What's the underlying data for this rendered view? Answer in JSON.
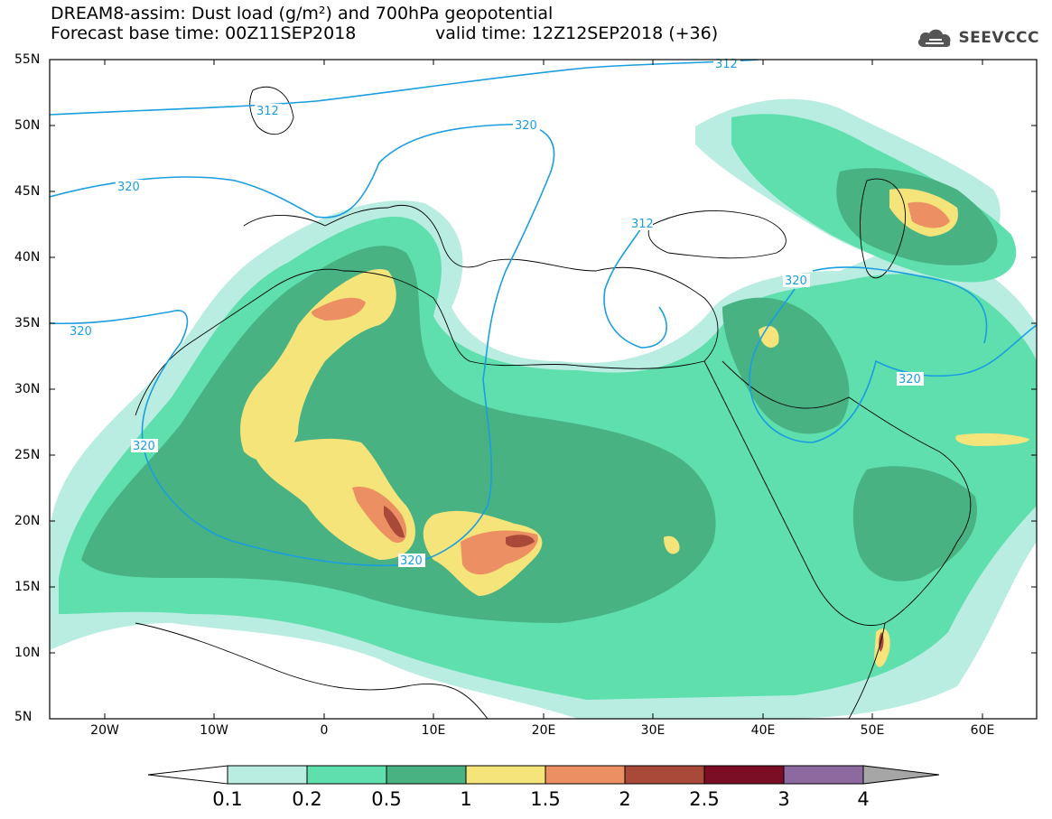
{
  "header": {
    "title_line1": "DREAM8-assim: Dust load (g/m²) and 700hPa geopotential",
    "title_line2_left": "Forecast base time: 00Z11SEP2018",
    "title_line2_right": "valid time: 12Z12SEP2018 (+36)"
  },
  "logo": {
    "text": "SEEVCCC",
    "icon": "cloud-icon"
  },
  "map": {
    "projection": "latitude-longitude",
    "lon_range": [
      "25W",
      "65E"
    ],
    "lat_range": [
      "5N",
      "55N"
    ],
    "lat_labels": [
      "55N",
      "50N",
      "45N",
      "40N",
      "35N",
      "30N",
      "25N",
      "20N",
      "15N",
      "10N",
      "5N"
    ],
    "lon_labels": [
      "20W",
      "10W",
      "0",
      "10E",
      "20E",
      "30E",
      "40E",
      "50E",
      "60E"
    ],
    "contour_labels": [
      "312",
      "312",
      "320",
      "320",
      "312",
      "320",
      "320",
      "320",
      "320",
      "320"
    ],
    "contour_color": "#1a9ee0"
  },
  "colorbar": {
    "labels": [
      "0.1",
      "0.2",
      "0.5",
      "1",
      "1.5",
      "2",
      "2.5",
      "3",
      "4"
    ],
    "colors": [
      "#b9ede1",
      "#5fdfae",
      "#48b283",
      "#f5e47a",
      "#ec8f62",
      "#a9493a",
      "#7b0d25",
      "#8c6aa0"
    ],
    "under_color": "#ffffff",
    "over_color": "#a6a6a6"
  }
}
